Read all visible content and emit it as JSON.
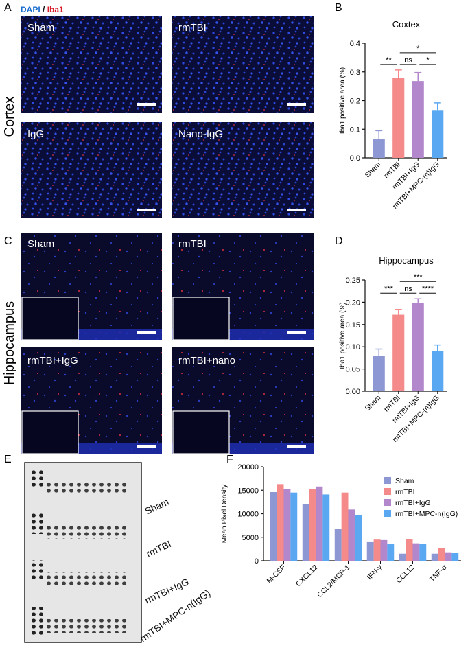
{
  "image_panels": [
    {
      "letter": "A",
      "channels": [
        "DAPI",
        "/",
        "Iba1"
      ],
      "region": "Cortex",
      "tiles": [
        "Sham",
        "rmTBI",
        "IgG",
        "Nano-IgG"
      ]
    },
    {
      "letter": "C",
      "region": "Hippocampus",
      "tiles": [
        "Sham",
        "rmTBI",
        "rmTBI+IgG",
        "rmTBI+nano"
      ]
    },
    {
      "letter": "E",
      "rows": [
        "Sham",
        "rmTBI",
        "rmTBI+IgG",
        "rmTBI+MPC-n(IgG)"
      ]
    }
  ],
  "chart_data": [
    {
      "type": "bar",
      "panel": "B",
      "title": "Coxtex",
      "y_label": "Iba1 positive area (%)",
      "categories": [
        "Sham",
        "rmTBI",
        "rmTBI+IgG",
        "rmTBI+MPC-(n)IgG"
      ],
      "values": [
        0.065,
        0.28,
        0.268,
        0.167
      ],
      "errors": [
        0.03,
        0.027,
        0.03,
        0.025
      ],
      "colors": [
        "#8d97d4",
        "#f48a8a",
        "#b287cc",
        "#5aa8f2"
      ],
      "ylim": [
        0,
        0.4
      ],
      "yticks": [
        {
          "value": 0,
          "label": "0.0"
        },
        0.1,
        0.2,
        0.3,
        0.4
      ],
      "significance": [
        {
          "label": "**",
          "between": [
            "Sham",
            "rmTBI"
          ]
        },
        {
          "label": "ns",
          "between": [
            "rmTBI",
            "rmTBI+IgG"
          ]
        },
        {
          "label": "*",
          "between": [
            "rmTBI+IgG",
            "rmTBI+MPC-(n)IgG"
          ]
        },
        {
          "label": "*",
          "between": [
            "rmTBI",
            "rmTBI+MPC-(n)IgG"
          ]
        }
      ]
    },
    {
      "type": "bar",
      "panel": "D",
      "title": "Hippocampus",
      "y_label": "Iba1 positive area (%)",
      "categories": [
        "Sham",
        "rmTBI",
        "rmTBI+IgG",
        "rmTBI+MPC-(n)IgG"
      ],
      "values": [
        0.08,
        0.172,
        0.198,
        0.09
      ],
      "errors": [
        0.015,
        0.012,
        0.01,
        0.014
      ],
      "colors": [
        "#8d97d4",
        "#f48a8a",
        "#b287cc",
        "#5aa8f2"
      ],
      "ylim": [
        0,
        0.25
      ],
      "yticks": [
        {
          "value": 0,
          "label": "0.00"
        },
        0.05,
        {
          "value": 0.1,
          "label": "0.10"
        },
        0.15,
        {
          "value": 0.2,
          "label": "0.20"
        },
        0.25
      ],
      "significance": [
        {
          "label": "***",
          "between": [
            "Sham",
            "rmTBI"
          ]
        },
        {
          "label": "ns",
          "between": [
            "rmTBI",
            "rmTBI+IgG"
          ]
        },
        {
          "label": "****",
          "between": [
            "rmTBI+IgG",
            "rmTBI+MPC-(n)IgG"
          ]
        },
        {
          "label": "***",
          "between": [
            "rmTBI",
            "rmTBI+MPC-(n)IgG"
          ]
        }
      ]
    },
    {
      "type": "bar",
      "panel": "F",
      "y_label": "Mean Pixel Density",
      "legend": "right",
      "categories": [
        "M-CSF",
        "CXCL12",
        "CCL2/MCP-1",
        "IFN-γ",
        "CCL12",
        "TNF-α"
      ],
      "series": [
        {
          "name": "Sham",
          "color": "#8d97d4",
          "values": [
            14600,
            12000,
            6800,
            4100,
            1500,
            1500
          ]
        },
        {
          "name": "rmTBI",
          "color": "#f48a8a",
          "values": [
            16300,
            15300,
            14500,
            4500,
            4600,
            2700
          ]
        },
        {
          "name": "rmTBI+IgG",
          "color": "#b287cc",
          "values": [
            15200,
            15800,
            10900,
            4400,
            3700,
            1800
          ]
        },
        {
          "name": "rmTBI+MPC-n(IgG)",
          "color": "#5aa8f2",
          "values": [
            14500,
            14100,
            9700,
            3500,
            3600,
            1700
          ]
        }
      ],
      "ylim": [
        0,
        20000
      ],
      "yticks": [
        0,
        5000,
        10000,
        15000,
        20000
      ]
    }
  ]
}
